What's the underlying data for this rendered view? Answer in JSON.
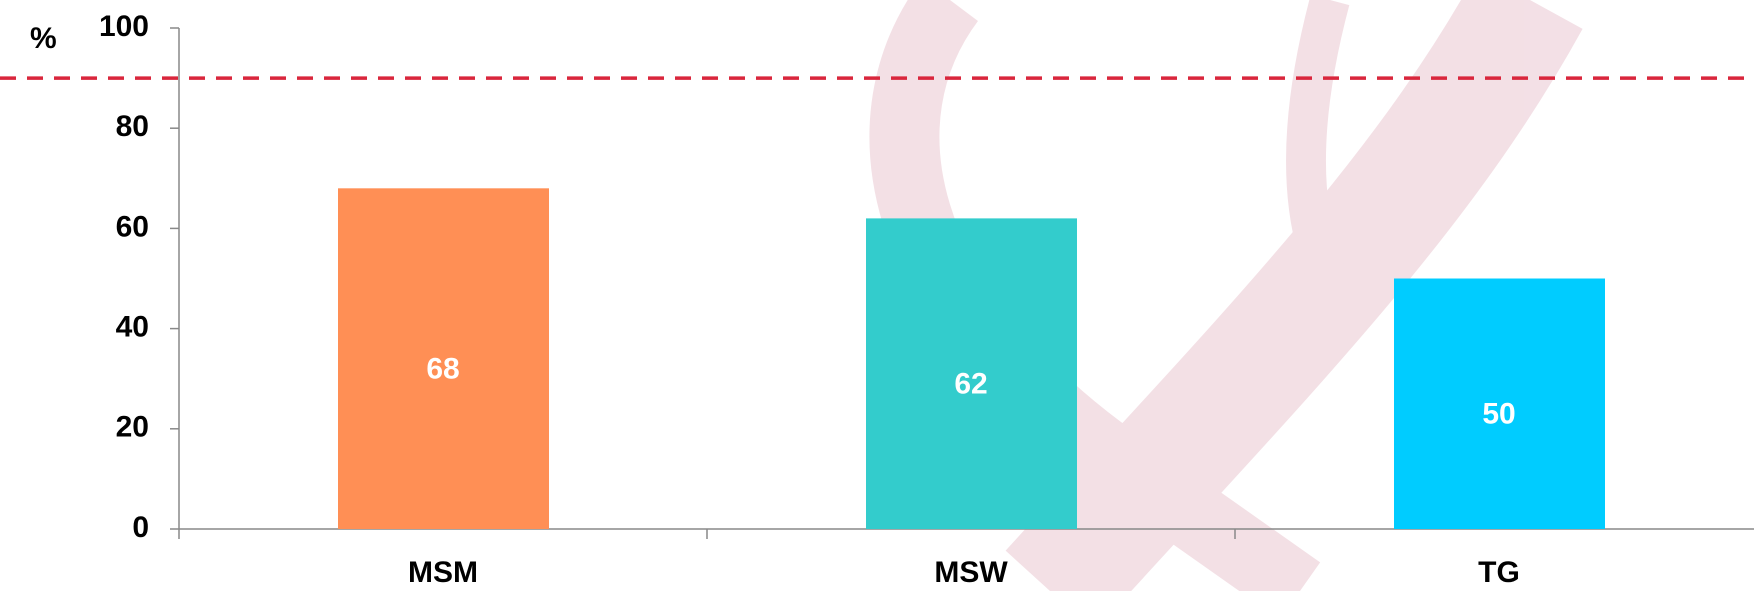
{
  "chart_data": {
    "type": "bar",
    "y_label": "%",
    "categories": [
      "MSM",
      "MSW",
      "TG"
    ],
    "values": [
      68,
      62,
      50
    ],
    "colors": [
      "#ff8f55",
      "#33cccc",
      "#00ccff"
    ],
    "ylim": [
      0,
      100
    ],
    "yticks": [
      0,
      20,
      40,
      60,
      80,
      100
    ],
    "reference_line": {
      "value": 90,
      "color": "#d9263c"
    }
  }
}
